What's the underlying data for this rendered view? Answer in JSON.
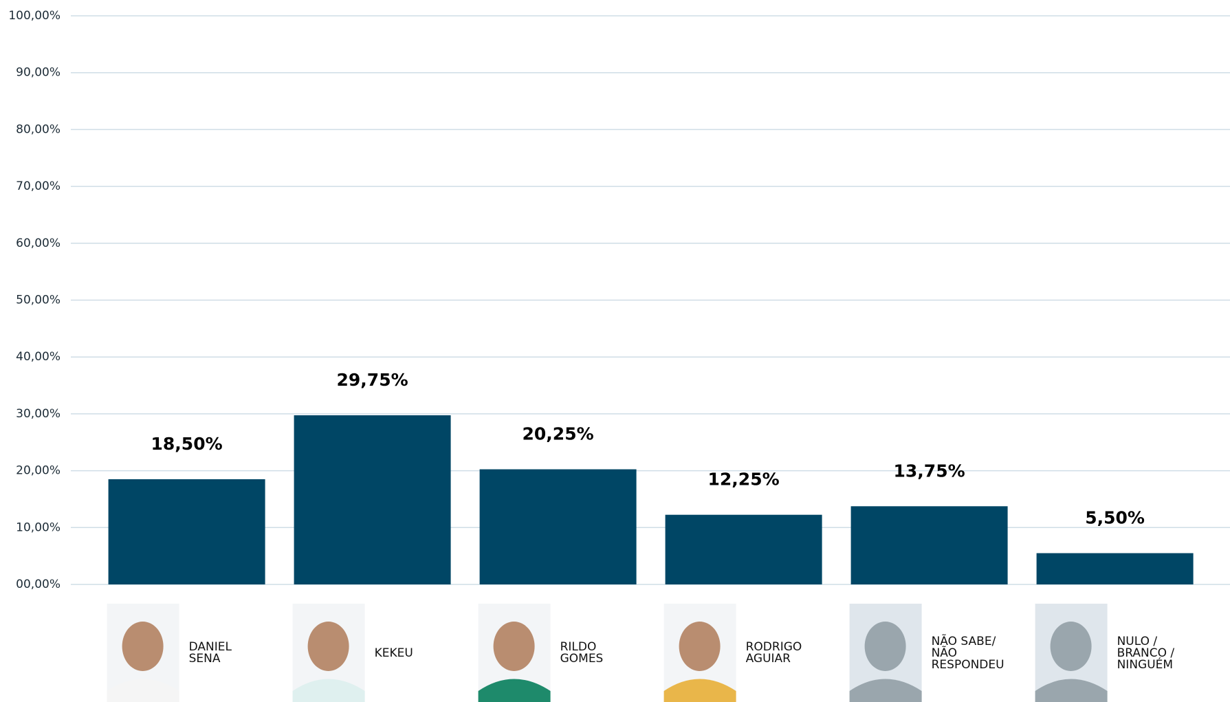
{
  "chart_data": {
    "type": "bar",
    "categories": [
      "DANIEL\nSENA",
      "KEKEU",
      "RILDO\nGOMES",
      "RODRIGO\nAGUIAR",
      "NÃO SABE/\nNÃO\nRESPONDEU",
      "NULO /\nBRANCO /\nNINGUÉM"
    ],
    "values": [
      18.5,
      29.75,
      20.25,
      12.25,
      13.75,
      5.5
    ],
    "value_labels": [
      "18,50%",
      "29,75%",
      "20,25%",
      "12,25%",
      "13,75%",
      "5,50%"
    ],
    "color": "#004665",
    "ylim": [
      0,
      100
    ],
    "yticks": [
      {
        "value": 0,
        "label": "00,00%"
      },
      {
        "value": 10,
        "label": "10,00%"
      },
      {
        "value": 20,
        "label": "20,00%"
      },
      {
        "value": 30,
        "label": "30,00%"
      },
      {
        "value": 40,
        "label": "40,00%"
      },
      {
        "value": 50,
        "label": "50,00%"
      },
      {
        "value": 60,
        "label": "60,00%"
      },
      {
        "value": 70,
        "label": "70,00%"
      },
      {
        "value": 80,
        "label": "80,00%"
      },
      {
        "value": 90,
        "label": "90,00%"
      },
      {
        "value": 100,
        "label": "100,00%"
      }
    ],
    "grid": true
  }
}
